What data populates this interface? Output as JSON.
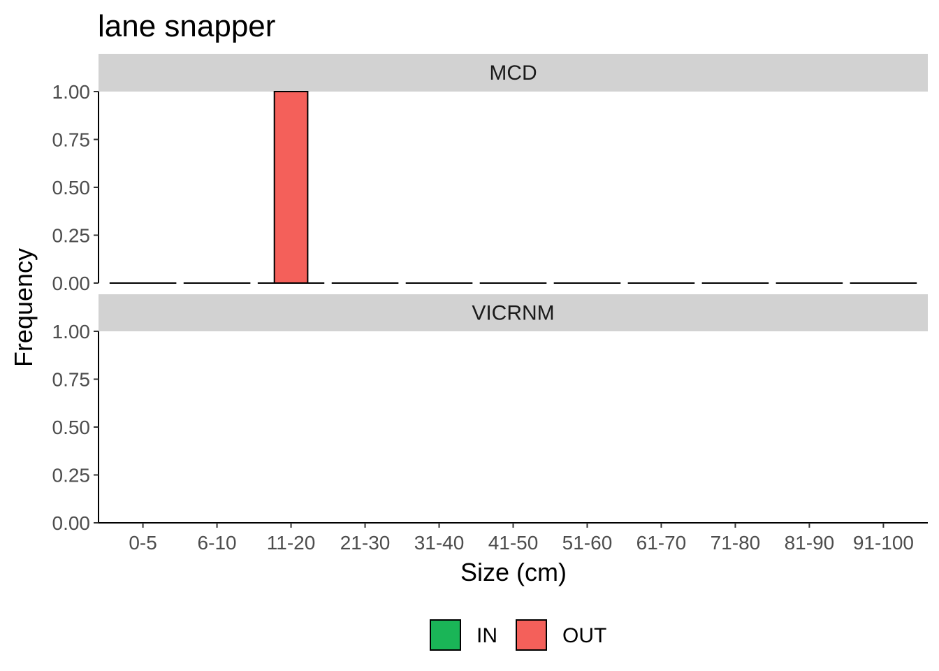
{
  "chart_data": {
    "type": "bar",
    "title": "lane snapper",
    "xlabel": "Size (cm)",
    "ylabel": "Frequency",
    "categories": [
      "0-5",
      "6-10",
      "11-20",
      "21-30",
      "31-40",
      "41-50",
      "51-60",
      "61-70",
      "71-80",
      "81-90",
      "91-100"
    ],
    "ylim": [
      0,
      1
    ],
    "yticks": [
      "0.00",
      "0.25",
      "0.50",
      "0.75",
      "1.00"
    ],
    "grid": false,
    "legend_position": "bottom",
    "legend": [
      {
        "label": "IN",
        "color": "#1AB557"
      },
      {
        "label": "OUT",
        "color": "#F4605A"
      }
    ],
    "panels": [
      {
        "strip": "MCD",
        "series": [
          {
            "name": "IN",
            "values": [
              0,
              0,
              0,
              0,
              0,
              0,
              0,
              0,
              0,
              0,
              0
            ]
          },
          {
            "name": "OUT",
            "values": [
              0,
              0,
              1,
              0,
              0,
              0,
              0,
              0,
              0,
              0,
              0
            ]
          }
        ]
      },
      {
        "strip": "VICRNM",
        "series": [
          {
            "name": "IN",
            "values": [
              0,
              0,
              0,
              0,
              0,
              0,
              0,
              0,
              0,
              0,
              0
            ]
          },
          {
            "name": "OUT",
            "values": [
              0,
              0,
              0,
              0,
              0,
              0,
              0,
              0,
              0,
              0,
              0
            ]
          }
        ]
      }
    ]
  }
}
